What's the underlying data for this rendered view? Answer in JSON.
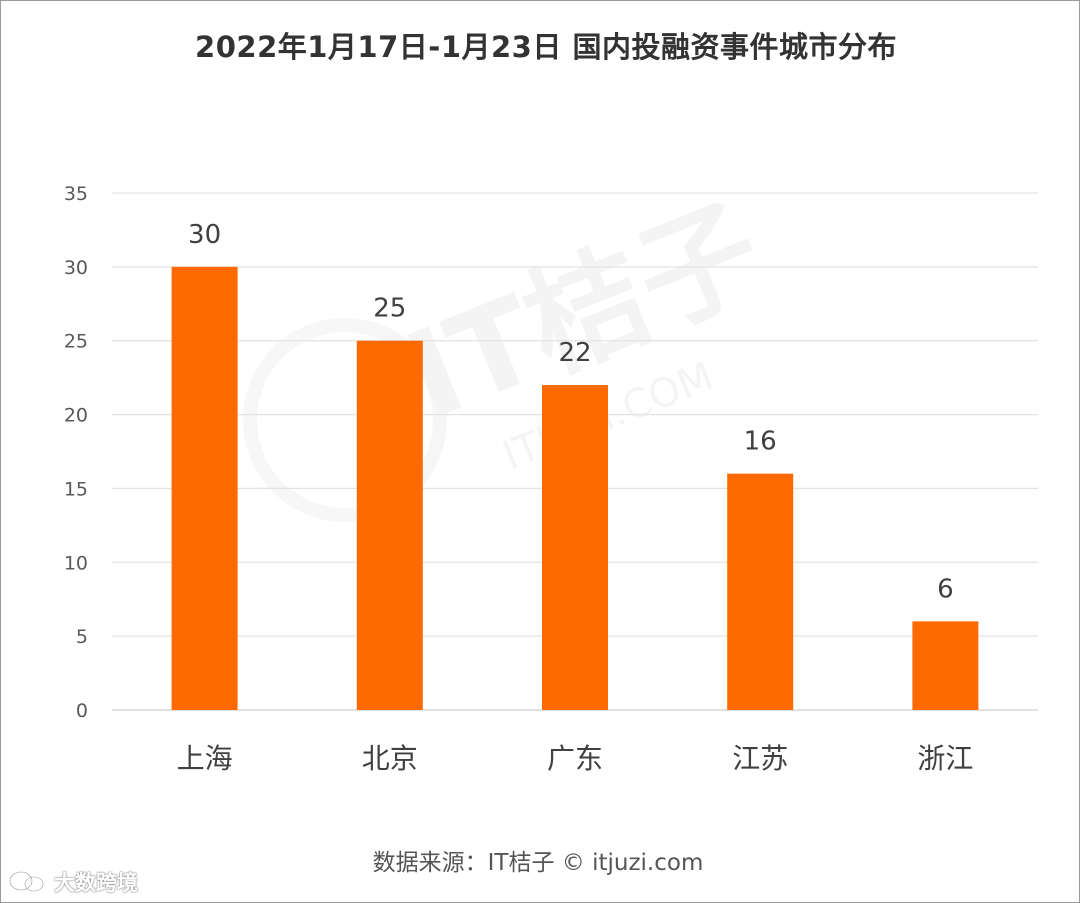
{
  "header": {
    "title": "2022年1月17日-1月23日 国内投融资事件城市分布"
  },
  "chart_data": {
    "type": "bar",
    "title": "2022年1月17日-1月23日 国内投融资事件城市分布",
    "categories": [
      "上海",
      "北京",
      "广东",
      "江苏",
      "浙江"
    ],
    "values": [
      30,
      25,
      22,
      16,
      6
    ],
    "ylim": [
      0,
      35
    ],
    "yticks": [
      "0",
      "5",
      "10",
      "15",
      "20",
      "25",
      "30",
      "35"
    ],
    "bar_color": "#ff6a00",
    "grid": true,
    "xlabel": "",
    "ylabel": ""
  },
  "watermark": {
    "brand": "IT桔子",
    "domain": "ITJUZI.COM"
  },
  "footer": {
    "source": "数据来源：IT桔子 © itjuzi.com"
  },
  "corner_logo": {
    "text": "大数跨境"
  }
}
